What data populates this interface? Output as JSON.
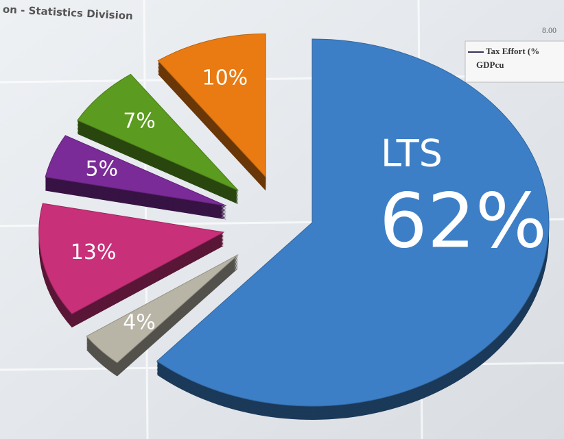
{
  "background": {
    "header": "on - Statistics Division",
    "axis_value": "8.00",
    "legend_items": [
      "Tax Effort (%",
      "GDPcu"
    ]
  },
  "chart_data": {
    "type": "pie",
    "categories": [
      "LTS",
      null,
      null,
      null,
      null,
      null
    ],
    "values": [
      62,
      4,
      13,
      5,
      7,
      10
    ],
    "value_labels": [
      "62%",
      "4%",
      "13%",
      "5%",
      "7%",
      "10%"
    ],
    "colors": [
      "#3d7fc6",
      "#b9b5a6",
      "#c83079",
      "#7b2b97",
      "#5b9b1f",
      "#e97b12"
    ]
  }
}
